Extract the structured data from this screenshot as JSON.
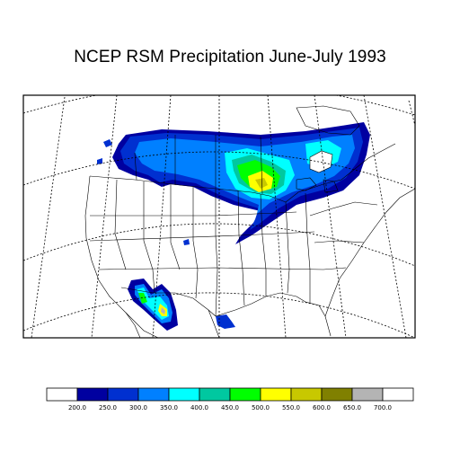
{
  "title": "NCEP RSM Precipitation June-July 1993",
  "legend": {
    "colors": [
      "#ffffff",
      "#0000a0",
      "#0030d0",
      "#0080ff",
      "#00ffff",
      "#00c8a0",
      "#00ff00",
      "#ffff00",
      "#c8c800",
      "#808000",
      "#b4b4b4",
      "#ffffff"
    ],
    "labels": [
      "200.0",
      "250.0",
      "300.0",
      "350.0",
      "400.0",
      "450.0",
      "500.0",
      "550.0",
      "600.0",
      "650.0",
      "700.0"
    ]
  }
}
